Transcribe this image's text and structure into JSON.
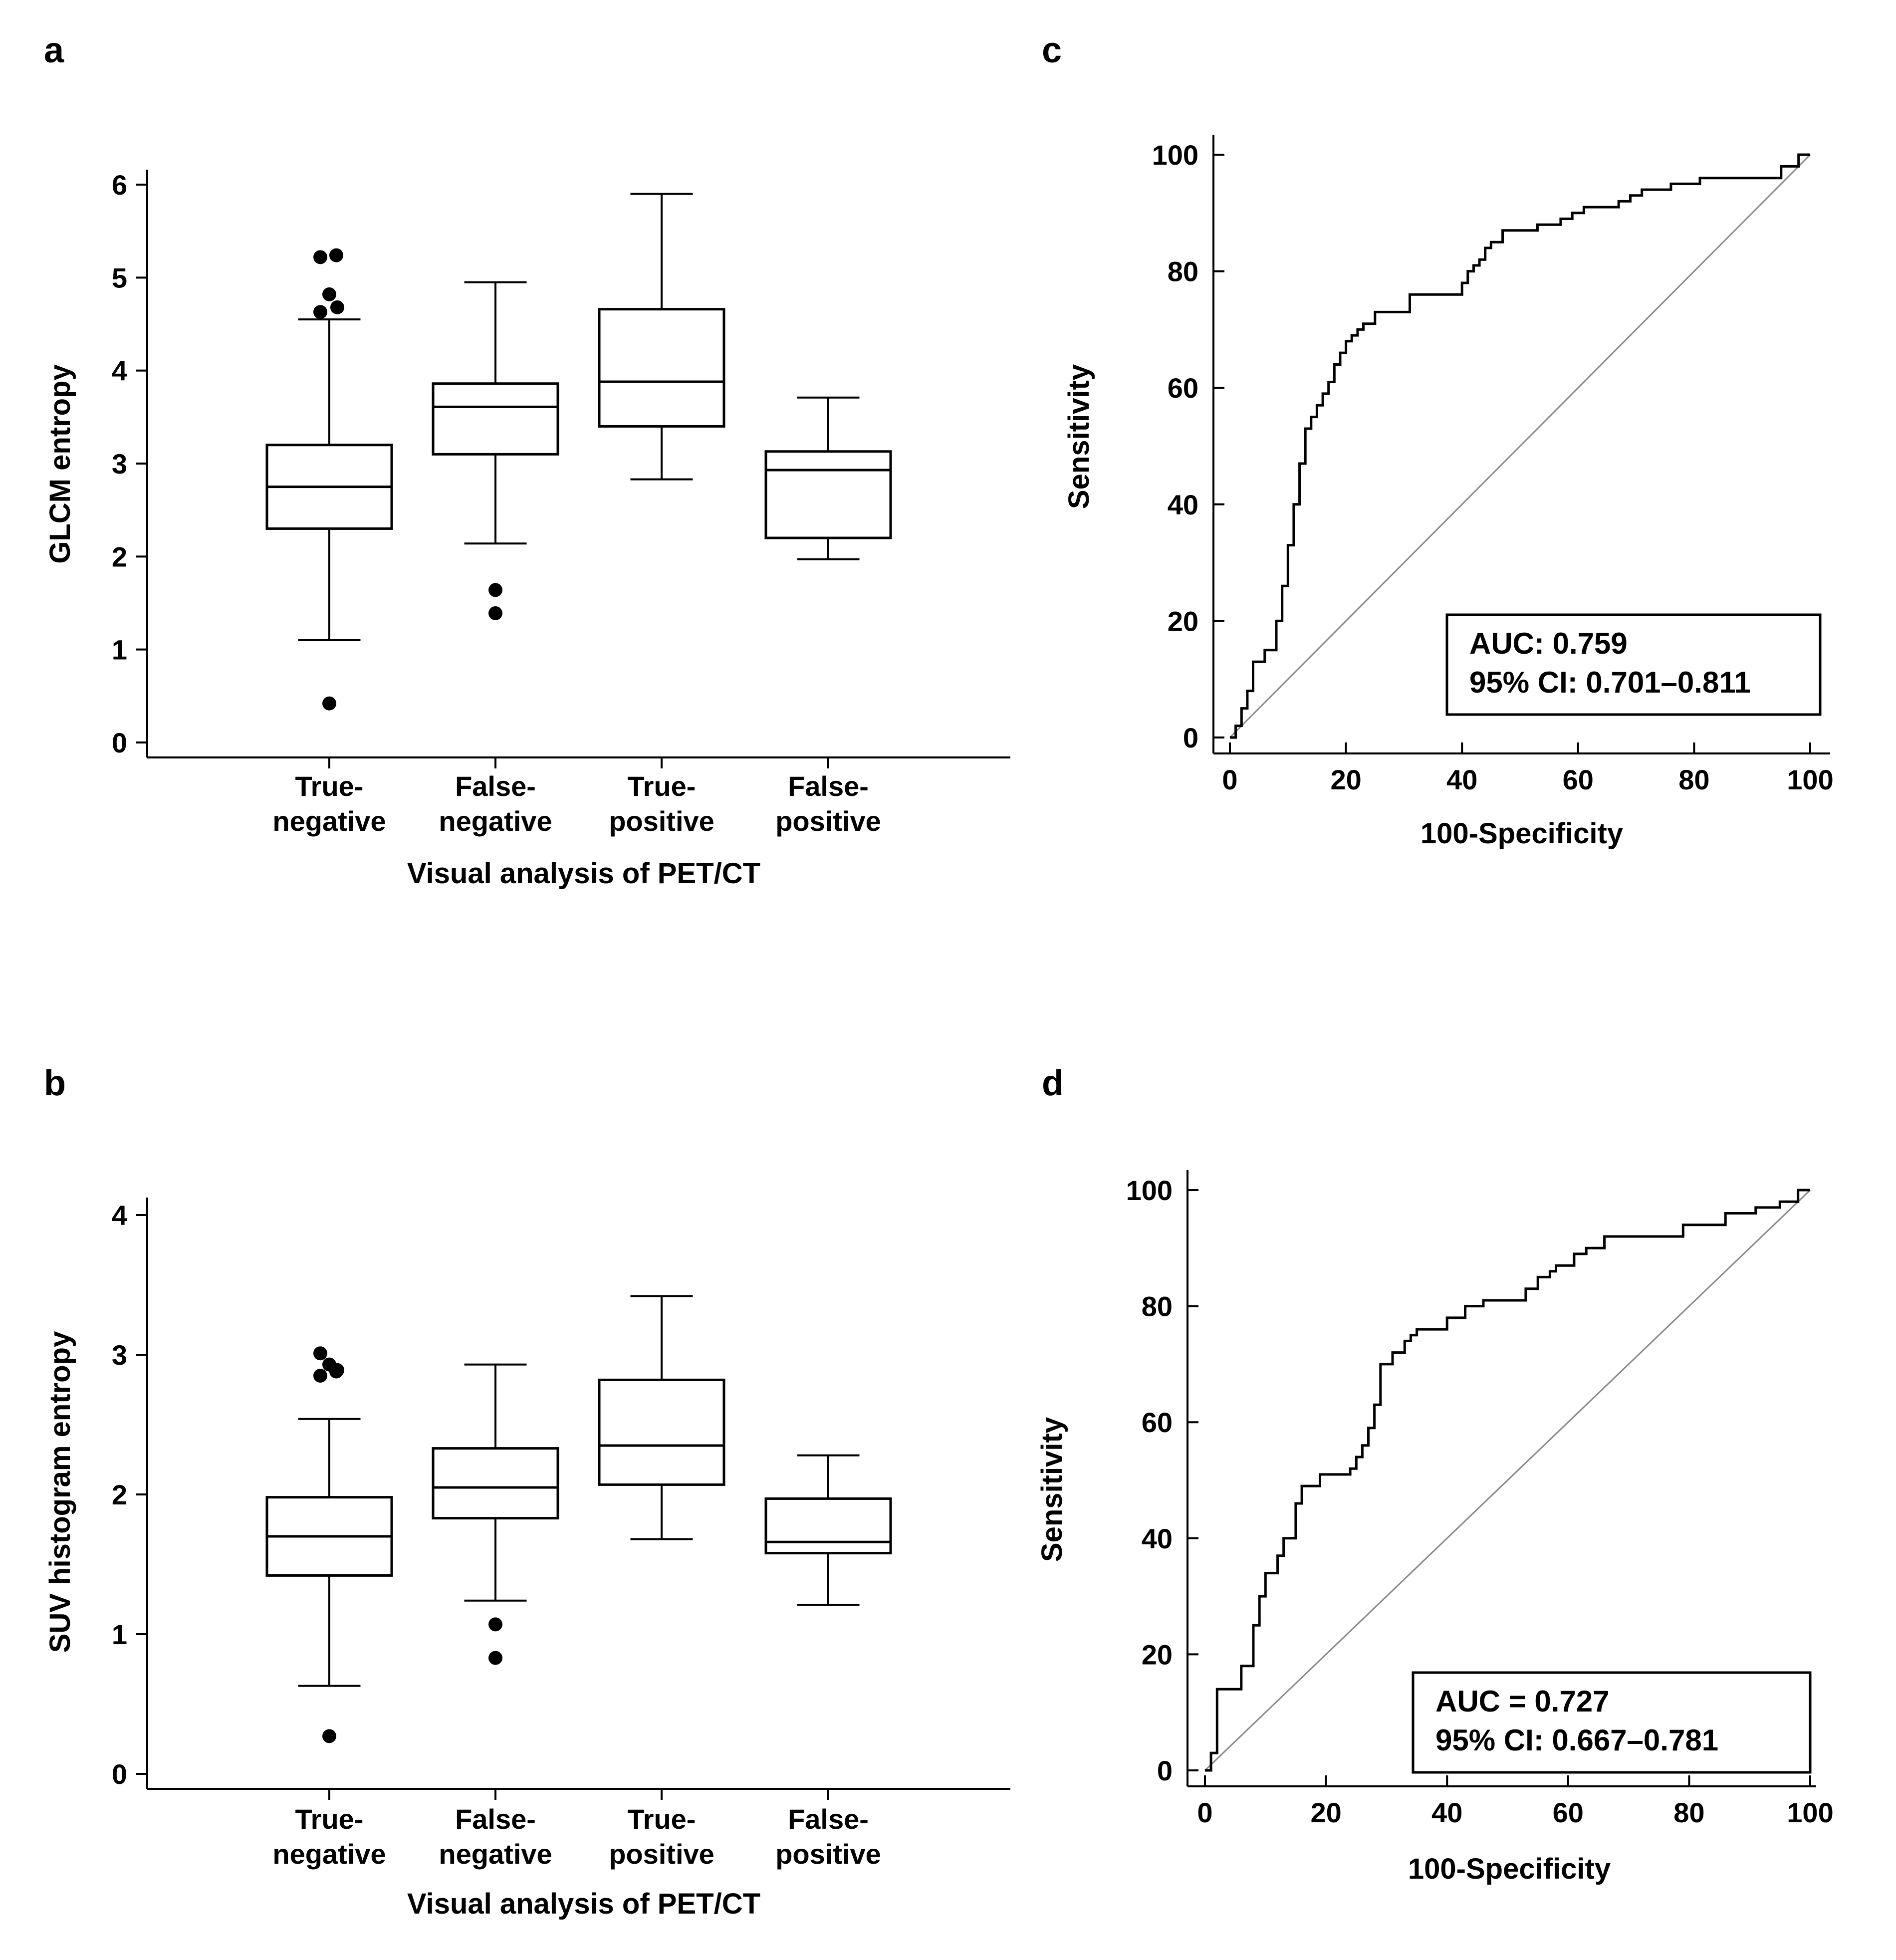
{
  "chart_data": [
    {
      "panel": "a",
      "type": "box",
      "xlabel": "Visual analysis of PET/CT",
      "ylabel": "GLCM entropy",
      "ylim": [
        0,
        6
      ],
      "yticks": [
        "0",
        "1",
        "2",
        "3",
        "4",
        "5",
        "6"
      ],
      "categories": [
        [
          "True-",
          "negative"
        ],
        [
          "False-",
          "negative"
        ],
        [
          "True-",
          "positive"
        ],
        [
          "False-",
          "positive"
        ]
      ],
      "boxes": [
        {
          "whisker_low": 1.1,
          "q1": 2.3,
          "median": 2.75,
          "q3": 3.2,
          "whisker_high": 4.55,
          "outliers": [
            5.22,
            5.24,
            4.82,
            4.63,
            4.68,
            0.42
          ]
        },
        {
          "whisker_low": 2.14,
          "q1": 3.1,
          "median": 3.61,
          "q3": 3.86,
          "whisker_high": 4.95,
          "outliers": [
            1.64,
            1.39
          ]
        },
        {
          "whisker_low": 2.83,
          "q1": 3.4,
          "median": 3.88,
          "q3": 4.66,
          "whisker_high": 5.9,
          "outliers": []
        },
        {
          "whisker_low": 1.97,
          "q1": 2.2,
          "median": 2.93,
          "q3": 3.13,
          "whisker_high": 3.71,
          "outliers": []
        }
      ]
    },
    {
      "panel": "b",
      "type": "box",
      "xlabel": "Visual analysis of PET/CT",
      "ylabel": "SUV histogram entropy",
      "ylim": [
        0,
        4
      ],
      "yticks": [
        "0",
        "1",
        "2",
        "3",
        "4"
      ],
      "categories": [
        [
          "True-",
          "negative"
        ],
        [
          "False-",
          "negative"
        ],
        [
          "True-",
          "positive"
        ],
        [
          "False-",
          "positive"
        ]
      ],
      "boxes": [
        {
          "whisker_low": 0.63,
          "q1": 1.42,
          "median": 1.7,
          "q3": 1.98,
          "whisker_high": 2.54,
          "outliers": [
            2.85,
            2.88,
            2.93,
            3.01,
            2.89,
            0.27
          ]
        },
        {
          "whisker_low": 1.24,
          "q1": 1.83,
          "median": 2.05,
          "q3": 2.33,
          "whisker_high": 2.93,
          "outliers": [
            1.07,
            0.83
          ]
        },
        {
          "whisker_low": 1.68,
          "q1": 2.07,
          "median": 2.35,
          "q3": 2.82,
          "whisker_high": 3.42,
          "outliers": []
        },
        {
          "whisker_low": 1.21,
          "q1": 1.58,
          "median": 1.66,
          "q3": 1.97,
          "whisker_high": 2.28,
          "outliers": []
        }
      ]
    },
    {
      "panel": "c",
      "type": "line",
      "xlabel": "100-Specificity",
      "ylabel": "Sensitivity",
      "xlim": [
        0,
        100
      ],
      "ylim": [
        0,
        100
      ],
      "xticks": [
        "0",
        "20",
        "40",
        "60",
        "80",
        "100"
      ],
      "yticks": [
        "0",
        "20",
        "40",
        "60",
        "80",
        "100"
      ],
      "annotation": [
        "AUC: 0.759",
        "95% CI: 0.701–0.811"
      ],
      "series": [
        {
          "name": "ROC",
          "x": [
            0,
            1,
            1,
            2,
            2,
            3,
            3,
            4,
            4,
            6,
            6,
            8,
            8,
            9,
            9,
            10,
            10,
            11,
            11,
            12,
            12,
            13,
            13,
            14,
            14,
            15,
            15,
            16,
            16,
            17,
            17,
            18,
            18,
            19,
            19,
            20,
            20,
            21,
            21,
            22,
            22,
            23,
            23,
            25,
            25,
            27,
            27,
            31,
            31,
            40,
            40,
            41,
            41,
            42,
            42,
            43,
            43,
            44,
            44,
            45,
            45,
            47,
            47,
            49,
            49,
            53,
            53,
            57,
            57,
            59,
            59,
            61,
            61,
            63,
            63,
            67,
            67,
            69,
            69,
            71,
            71,
            76,
            76,
            81,
            81,
            95,
            95,
            98,
            98,
            100
          ],
          "y": [
            0,
            0,
            2,
            2,
            5,
            5,
            8,
            8,
            13,
            13,
            15,
            15,
            20,
            20,
            26,
            26,
            33,
            33,
            40,
            40,
            47,
            47,
            53,
            53,
            55,
            55,
            57,
            57,
            59,
            59,
            61,
            61,
            64,
            64,
            66,
            66,
            68,
            68,
            69,
            69,
            70,
            70,
            71,
            71,
            73,
            73,
            73,
            73,
            76,
            76,
            78,
            78,
            80,
            80,
            81,
            81,
            82,
            82,
            84,
            84,
            85,
            85,
            87,
            87,
            87,
            87,
            88,
            88,
            89,
            89,
            90,
            90,
            91,
            91,
            91,
            91,
            92,
            92,
            93,
            93,
            94,
            94,
            95,
            95,
            96,
            96,
            98,
            98,
            100,
            100
          ]
        }
      ]
    },
    {
      "panel": "d",
      "type": "line",
      "xlabel": "100-Specificity",
      "ylabel": "Sensitivity",
      "xlim": [
        0,
        100
      ],
      "ylim": [
        0,
        100
      ],
      "xticks": [
        "0",
        "20",
        "40",
        "60",
        "80",
        "100"
      ],
      "yticks": [
        "0",
        "20",
        "40",
        "60",
        "80",
        "100"
      ],
      "annotation": [
        "AUC = 0.727",
        "95% CI: 0.667–0.781"
      ],
      "series": [
        {
          "name": "ROC",
          "x": [
            0,
            1,
            1,
            2,
            2,
            6,
            6,
            8,
            8,
            9,
            9,
            10,
            10,
            12,
            12,
            13,
            13,
            15,
            15,
            16,
            16,
            19,
            19,
            24,
            24,
            25,
            25,
            26,
            26,
            27,
            27,
            28,
            28,
            29,
            29,
            31,
            31,
            33,
            33,
            34,
            34,
            35,
            35,
            40,
            40,
            43,
            43,
            46,
            46,
            53,
            53,
            55,
            55,
            57,
            57,
            58,
            58,
            61,
            61,
            63,
            63,
            66,
            66,
            79,
            79,
            86,
            86,
            91,
            91,
            95,
            95,
            98,
            98,
            100
          ],
          "y": [
            0,
            0,
            3,
            3,
            14,
            14,
            18,
            18,
            25,
            25,
            30,
            30,
            34,
            34,
            37,
            37,
            40,
            40,
            46,
            46,
            49,
            49,
            51,
            51,
            52,
            52,
            54,
            54,
            56,
            56,
            59,
            59,
            63,
            63,
            70,
            70,
            72,
            72,
            74,
            74,
            75,
            75,
            76,
            76,
            78,
            78,
            80,
            80,
            81,
            81,
            83,
            83,
            85,
            85,
            86,
            86,
            87,
            87,
            89,
            89,
            90,
            90,
            92,
            92,
            94,
            94,
            96,
            96,
            97,
            97,
            98,
            98,
            100,
            100
          ]
        }
      ]
    }
  ]
}
